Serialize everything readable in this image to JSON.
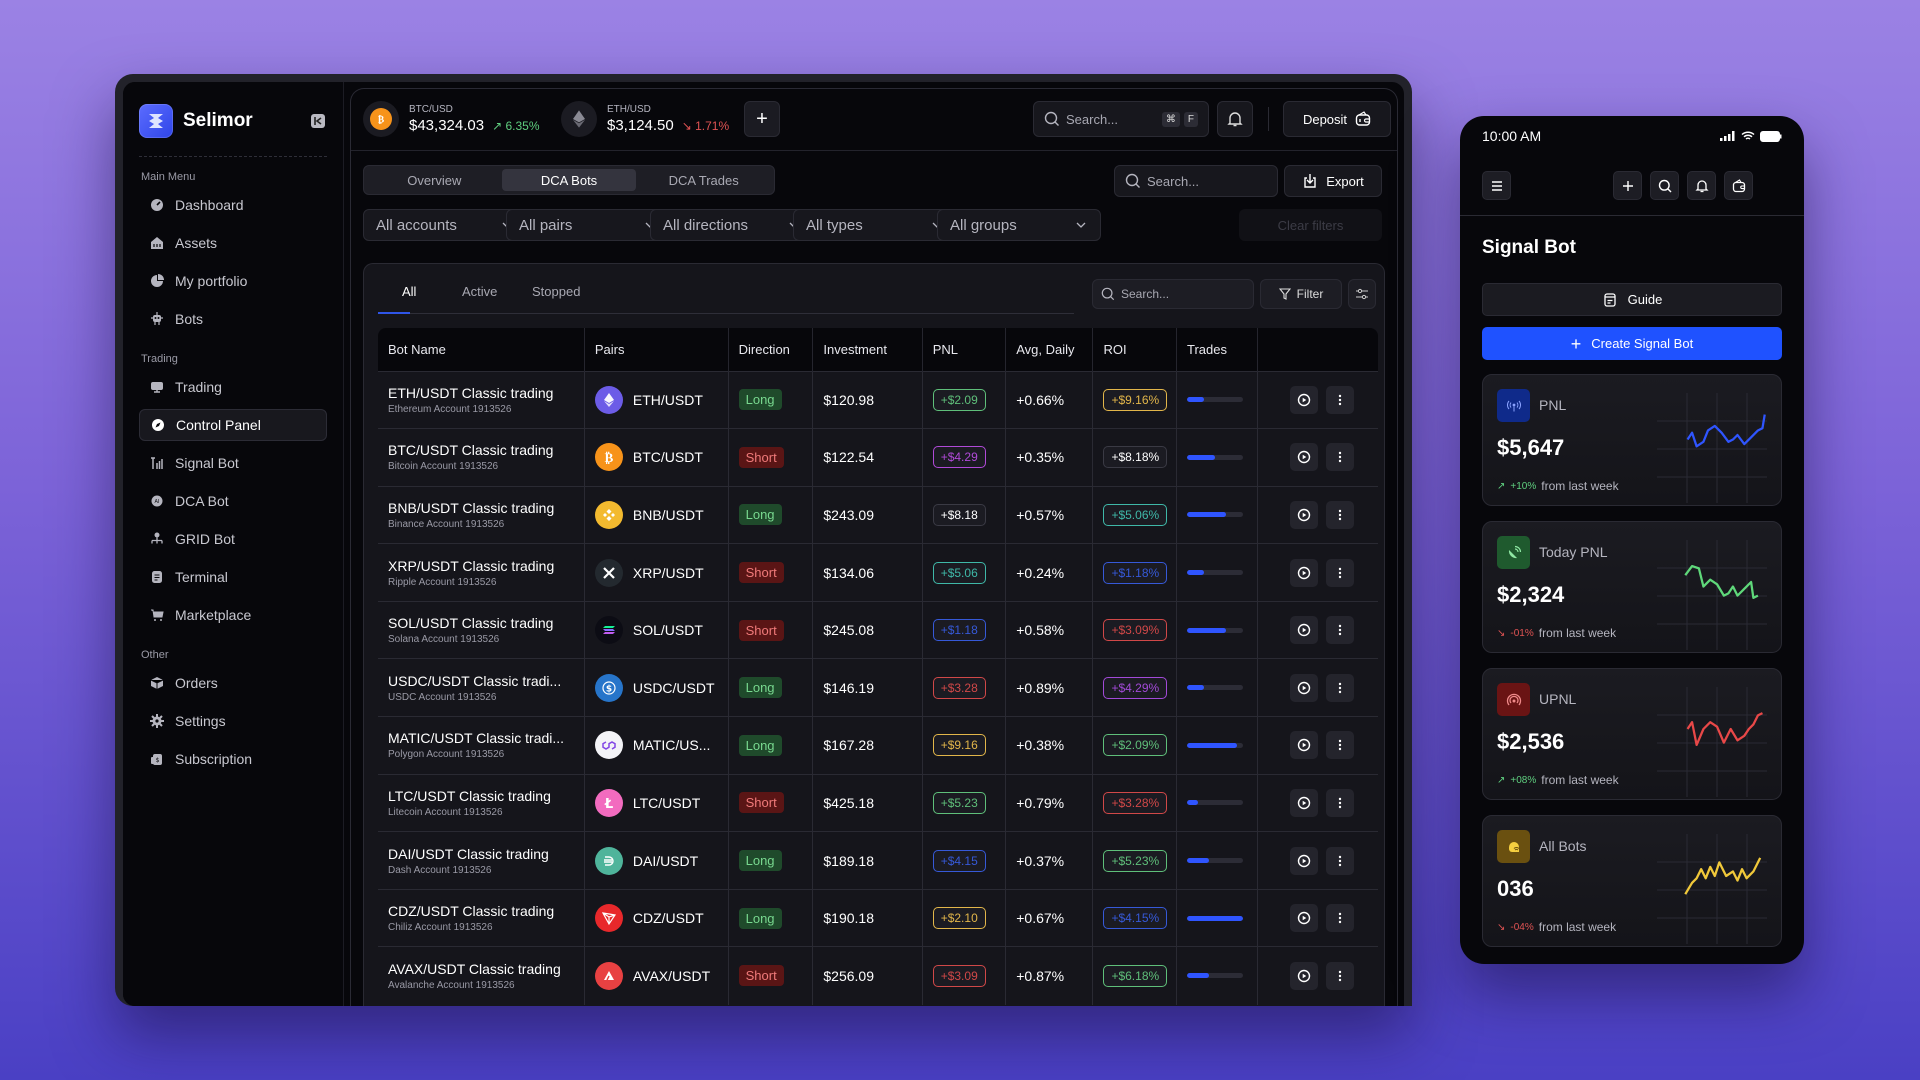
{
  "brand": {
    "name": "Selimor"
  },
  "sidebar": {
    "sections": [
      {
        "title": "Main Menu",
        "items": [
          {
            "label": "Dashboard",
            "icon": "gauge-icon"
          },
          {
            "label": "Assets",
            "icon": "bank-icon"
          },
          {
            "label": "My portfolio",
            "icon": "pie-chart-icon"
          },
          {
            "label": "Bots",
            "icon": "robot-icon"
          }
        ]
      },
      {
        "title": "Trading",
        "items": [
          {
            "label": "Trading",
            "icon": "monitor-icon"
          },
          {
            "label": "Control Panel",
            "icon": "compass-icon",
            "active": true
          },
          {
            "label": "Signal Bot",
            "icon": "signal-icon"
          },
          {
            "label": "DCA Bot",
            "icon": "ai-chip-icon"
          },
          {
            "label": "GRID Bot",
            "icon": "hierarchy-icon"
          },
          {
            "label": "Terminal",
            "icon": "terminal-icon"
          },
          {
            "label": "Marketplace",
            "icon": "cart-icon"
          }
        ]
      },
      {
        "title": "Other",
        "items": [
          {
            "label": "Orders",
            "icon": "box-icon"
          },
          {
            "label": "Settings",
            "icon": "gear-icon"
          },
          {
            "label": "Subscription",
            "icon": "dollar-card-icon"
          }
        ]
      }
    ]
  },
  "topbar": {
    "tickers": [
      {
        "pair": "BTC/USD",
        "price": "$43,324.03",
        "change": "6.35%",
        "direction": "up"
      },
      {
        "pair": "ETH/USD",
        "price": "$3,124.50",
        "change": "1.71%",
        "direction": "down"
      }
    ],
    "add_label": "+",
    "search_placeholder": "Search...",
    "shortcut": [
      "⌘",
      "F"
    ],
    "deposit_label": "Deposit"
  },
  "subbar": {
    "tabs": [
      {
        "label": "Overview"
      },
      {
        "label": "DCA Bots",
        "active": true
      },
      {
        "label": "DCA Trades"
      }
    ],
    "search_placeholder": "Search...",
    "export_label": "Export"
  },
  "filters": {
    "dropdowns": [
      "All accounts",
      "All pairs",
      "All directions",
      "All types",
      "All groups"
    ],
    "clear_label": "Clear filters"
  },
  "table_card": {
    "tabs": [
      {
        "label": "All",
        "active": true
      },
      {
        "label": "Active"
      },
      {
        "label": "Stopped"
      }
    ],
    "search_placeholder": "Search...",
    "filter_label": "Filter",
    "columns": [
      "Bot Name",
      "Pairs",
      "Direction",
      "Investment",
      "PNL",
      "Avg, Daily",
      "ROI",
      "Trades",
      ""
    ],
    "rows": [
      {
        "name": "ETH/USDT Classic trading",
        "account": "Ethereum Account 1913526",
        "pair": "ETH/USDT",
        "coin": "eth",
        "direction": "Long",
        "investment": "$120.98",
        "pnl": "+$2.09",
        "pnl_color": "#5fbf7a",
        "avg": "+0.66%",
        "roi": "+$9.16%",
        "roi_color": "#e2b64a",
        "progress": 30
      },
      {
        "name": "BTC/USDT Classic trading",
        "account": "Bitcoin Account 1913526",
        "pair": "BTC/USDT",
        "coin": "btc",
        "direction": "Short",
        "investment": "$122.54",
        "pnl": "+$4.29",
        "pnl_color": "#b04ad8",
        "avg": "+0.35%",
        "roi": "+$8.18%",
        "roi_color": "#3a3a44",
        "progress": 50
      },
      {
        "name": "BNB/USDT Classic trading",
        "account": "Binance Account 1913526",
        "pair": "BNB/USDT",
        "coin": "bnb",
        "direction": "Long",
        "investment": "$243.09",
        "pnl": "+$8.18",
        "pnl_color": "#3a3a44",
        "avg": "+0.57%",
        "roi": "+$5.06%",
        "roi_color": "#3fb8a8",
        "progress": 70
      },
      {
        "name": "XRP/USDT Classic trading",
        "account": "Ripple Account 1913526",
        "pair": "XRP/USDT",
        "coin": "xrp",
        "direction": "Short",
        "investment": "$134.06",
        "pnl": "+$5.06",
        "pnl_color": "#3fb8a8",
        "avg": "+0.24%",
        "roi": "+$1.18%",
        "roi_color": "#3659d8",
        "progress": 30
      },
      {
        "name": "SOL/USDT Classic trading",
        "account": "Solana Account 1913526",
        "pair": "SOL/USDT",
        "coin": "sol",
        "direction": "Short",
        "investment": "$245.08",
        "pnl": "+$1.18",
        "pnl_color": "#3659d8",
        "avg": "+0.58%",
        "roi": "+$3.09%",
        "roi_color": "#d04848",
        "progress": 70
      },
      {
        "name": "USDC/USDT Classic tradi...",
        "account": "USDC Account 1913526",
        "pair": "USDC/USDT",
        "coin": "usdc",
        "direction": "Long",
        "investment": "$146.19",
        "pnl": "+$3.28",
        "pnl_color": "#d04848",
        "avg": "+0.89%",
        "roi": "+$4.29%",
        "roi_color": "#a24ad8",
        "progress": 30
      },
      {
        "name": "MATIC/USDT Classic tradi...",
        "account": "Polygon  Account 1913526",
        "pair": "MATIC/US...",
        "coin": "matic",
        "direction": "Long",
        "investment": "$167.28",
        "pnl": "+$9.16",
        "pnl_color": "#e2b64a",
        "avg": "+0.38%",
        "roi": "+$2.09%",
        "roi_color": "#5fbf7a",
        "progress": 90
      },
      {
        "name": "LTC/USDT Classic trading",
        "account": "Litecoin  Account 1913526",
        "pair": "LTC/USDT",
        "coin": "ltc",
        "direction": "Short",
        "investment": "$425.18",
        "pnl": "+$5.23",
        "pnl_color": "#5fbf7a",
        "avg": "+0.79%",
        "roi": "+$3.28%",
        "roi_color": "#d04848",
        "progress": 20
      },
      {
        "name": "DAI/USDT Classic trading",
        "account": "Dash Account 1913526",
        "pair": "DAI/USDT",
        "coin": "dai",
        "direction": "Long",
        "investment": "$189.18",
        "pnl": "+$4.15",
        "pnl_color": "#3659d8",
        "avg": "+0.37%",
        "roi": "+$5.23%",
        "roi_color": "#5fbf7a",
        "progress": 40
      },
      {
        "name": "CDZ/USDT Classic trading",
        "account": "Chiliz  Account 1913526",
        "pair": "CDZ/USDT",
        "coin": "cdz",
        "direction": "Long",
        "investment": "$190.18",
        "pnl": "+$2.10",
        "pnl_color": "#e2b64a",
        "avg": "+0.67%",
        "roi": "+$4.15%",
        "roi_color": "#3659d8",
        "progress": 100
      },
      {
        "name": "AVAX/USDT Classic trading",
        "account": "Avalanche Account 1913526",
        "pair": "AVAX/USDT",
        "coin": "avax",
        "direction": "Short",
        "investment": "$256.09",
        "pnl": "+$3.09",
        "pnl_color": "#d04848",
        "avg": "+0.87%",
        "roi": "+$6.18%",
        "roi_color": "#5fbf7a",
        "progress": 40
      }
    ]
  },
  "phone": {
    "time": "10:00 AM",
    "title": "Signal Bot",
    "guide_label": "Guide",
    "create_label": "Create Signal Bot",
    "cards": [
      {
        "label": "PNL",
        "value": "$5,647",
        "delta": "+10%",
        "delta_dir": "up",
        "foot": "from last week",
        "color": "#2f55ff",
        "icon_bg": "#0f2a8a",
        "icon": "antenna-icon"
      },
      {
        "label": "Today PNL",
        "value": "$2,324",
        "delta": "-01%",
        "delta_dir": "down",
        "foot": "from last week",
        "color": "#5fd87a",
        "icon_bg": "#1f5a2e",
        "icon": "satellite-dish-icon"
      },
      {
        "label": "UPNL",
        "value": "$2,536",
        "delta": "+08%",
        "delta_dir": "up",
        "foot": "from last week",
        "color": "#e84848",
        "icon_bg": "#6a1414",
        "icon": "broadcast-icon"
      },
      {
        "label": "All Bots",
        "value": "036",
        "delta": "-04%",
        "delta_dir": "down",
        "foot": "from last week",
        "color": "#f0c83a",
        "icon_bg": "#6a5010",
        "icon": "bot-wifi-icon"
      }
    ]
  },
  "colors": {
    "accent": "#2f55ff",
    "long_bg": "#1f4a2b",
    "long_fg": "#78d88f",
    "short_bg": "#5a1515",
    "short_fg": "#f07a7a",
    "up": "#5fcf7f",
    "down": "#e05353"
  }
}
